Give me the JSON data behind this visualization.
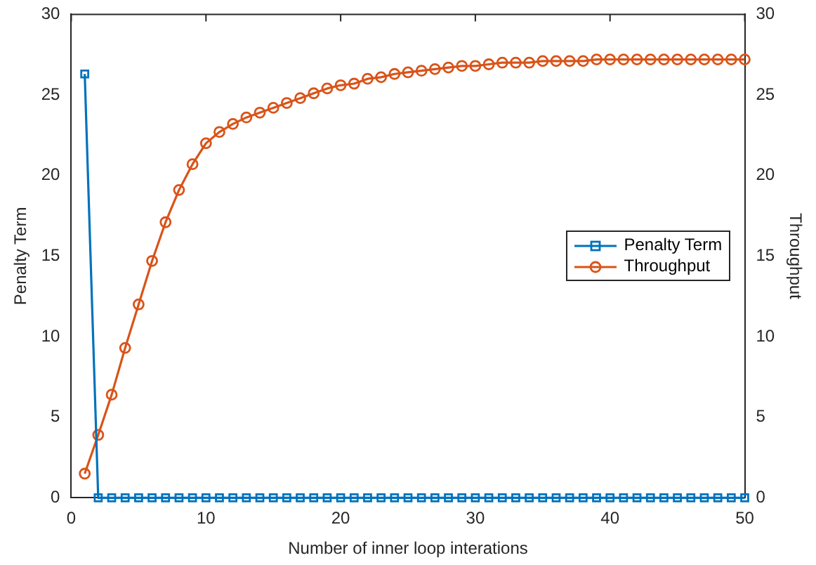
{
  "chart_data": {
    "type": "line",
    "xlabel": "Number of inner loop interations",
    "ylabel": "Penalty Term",
    "y2label": "Throughput",
    "x": [
      1,
      2,
      3,
      4,
      5,
      6,
      7,
      8,
      9,
      10,
      11,
      12,
      13,
      14,
      15,
      16,
      17,
      18,
      19,
      20,
      21,
      22,
      23,
      24,
      25,
      26,
      27,
      28,
      29,
      30,
      31,
      32,
      33,
      34,
      35,
      36,
      37,
      38,
      39,
      40,
      41,
      42,
      43,
      44,
      45,
      46,
      47,
      48,
      49,
      50
    ],
    "series": [
      {
        "name": "Penalty Term",
        "color": "#0072bd",
        "marker": "square",
        "values": [
          26.3,
          0,
          0,
          0,
          0,
          0,
          0,
          0,
          0,
          0,
          0,
          0,
          0,
          0,
          0,
          0,
          0,
          0,
          0,
          0,
          0,
          0,
          0,
          0,
          0,
          0,
          0,
          0,
          0,
          0,
          0,
          0,
          0,
          0,
          0,
          0,
          0,
          0,
          0,
          0,
          0,
          0,
          0,
          0,
          0,
          0,
          0,
          0,
          0,
          0
        ]
      },
      {
        "name": "Throughput",
        "color": "#d95319",
        "marker": "circle",
        "axis": "y2",
        "values": [
          1.5,
          3.9,
          6.4,
          9.3,
          12.0,
          14.7,
          17.1,
          19.1,
          20.7,
          22.0,
          22.7,
          23.2,
          23.6,
          23.9,
          24.2,
          24.5,
          24.8,
          25.1,
          25.4,
          25.6,
          25.7,
          26.0,
          26.1,
          26.3,
          26.4,
          26.5,
          26.6,
          26.7,
          26.8,
          26.8,
          26.9,
          27.0,
          27.0,
          27.0,
          27.1,
          27.1,
          27.1,
          27.1,
          27.2,
          27.2,
          27.2,
          27.2,
          27.2,
          27.2,
          27.2,
          27.2,
          27.2,
          27.2,
          27.2,
          27.2
        ]
      }
    ],
    "xlim": [
      0,
      50
    ],
    "xticks": [
      0,
      10,
      20,
      30,
      40,
      50
    ],
    "ylim": [
      0,
      30
    ],
    "yticks": [
      0,
      5,
      10,
      15,
      20,
      25,
      30
    ],
    "y2lim": [
      0,
      30
    ],
    "y2ticks": [
      0,
      5,
      10,
      15,
      20,
      25,
      30
    ],
    "grid": false,
    "legend": "right",
    "line_style": "solid"
  }
}
